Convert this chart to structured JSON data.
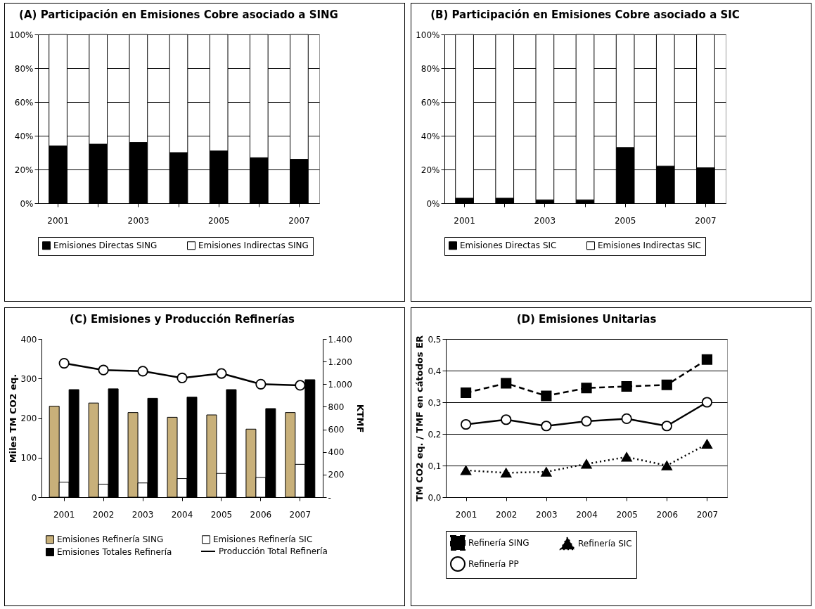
{
  "chart_data": [
    {
      "type": "bar",
      "title": "(A) Participación en Emisiones Cobre asociado a SING",
      "categories": [
        "2001",
        null,
        "2003",
        null,
        "2005",
        null,
        "2007"
      ],
      "stacked": true,
      "ylim": [
        0,
        100
      ],
      "yticks": [
        {
          "value": 0,
          "label": "0%"
        },
        {
          "value": 20,
          "label": "20%"
        },
        {
          "value": 40,
          "label": "40%"
        },
        {
          "value": 60,
          "label": "60%"
        },
        {
          "value": 80,
          "label": "80%"
        },
        {
          "value": 100,
          "label": "100%"
        }
      ],
      "grid": "y",
      "legend": "bottom",
      "series": [
        {
          "name": "Emisiones Directas SING",
          "color": "#000000",
          "values": [
            34,
            35,
            36,
            30,
            31,
            27,
            26
          ]
        },
        {
          "name": "Emisiones Indirectas SING",
          "color": "#ffffff",
          "values": [
            66,
            65,
            64,
            70,
            69,
            73,
            74
          ]
        }
      ]
    },
    {
      "type": "bar",
      "title": "(B) Participación en Emisiones Cobre asociado a SIC",
      "categories": [
        "2001",
        null,
        "2003",
        null,
        "2005",
        null,
        "2007"
      ],
      "stacked": true,
      "ylim": [
        0,
        100
      ],
      "yticks": [
        {
          "value": 0,
          "label": "0%"
        },
        {
          "value": 20,
          "label": "20%"
        },
        {
          "value": 40,
          "label": "40%"
        },
        {
          "value": 60,
          "label": "60%"
        },
        {
          "value": 80,
          "label": "80%"
        },
        {
          "value": 100,
          "label": "100%"
        }
      ],
      "grid": "y",
      "legend": "bottom",
      "series": [
        {
          "name": "Emisiones Directas SIC",
          "color": "#000000",
          "values": [
            3,
            3,
            2,
            2,
            33,
            22,
            21
          ]
        },
        {
          "name": "Emisiones Indirectas SIC",
          "color": "#ffffff",
          "values": [
            97,
            97,
            98,
            98,
            67,
            78,
            79
          ]
        }
      ]
    },
    {
      "type": "bar",
      "title": "(C) Emisiones y Producción Refinerías",
      "ylabel": "Miles TM CO2 eq.",
      "y2label": "KTMF",
      "categories": [
        "2001",
        "2002",
        "2003",
        "2004",
        "2005",
        "2006",
        "2007"
      ],
      "ylim": [
        0,
        400
      ],
      "yticks": [
        0,
        100,
        200,
        300,
        400
      ],
      "y2lim": [
        0,
        1400
      ],
      "y2ticks": [
        {
          "value": 0,
          "label": "-"
        },
        {
          "value": 200,
          "label": "200"
        },
        {
          "value": 400,
          "label": "400"
        },
        {
          "value": 600,
          "label": "600"
        },
        {
          "value": 800,
          "label": "800"
        },
        {
          "value": 1000,
          "label": "1.000"
        },
        {
          "value": 1200,
          "label": "1.200"
        },
        {
          "value": 1400,
          "label": "1.400"
        }
      ],
      "legend": "bottom",
      "series": [
        {
          "name": "Emisiones Refinería SING",
          "color": "#c8b07a",
          "values": [
            230,
            238,
            214,
            202,
            208,
            172,
            214
          ]
        },
        {
          "name": "Emisiones Refinería SIC",
          "color": "#ffffff",
          "values": [
            38,
            33,
            36,
            47,
            60,
            50,
            83
          ]
        },
        {
          "name": "Emisiones Totales Refinería",
          "color": "#000000",
          "values": [
            272,
            274,
            250,
            253,
            272,
            224,
            297
          ]
        },
        {
          "name": "Producción Total Refinería",
          "type": "line",
          "axis": "y2",
          "marker": "circle",
          "line_style": "solid",
          "color": "#000000",
          "values": [
            1185,
            1125,
            1115,
            1055,
            1095,
            1000,
            990
          ]
        }
      ]
    },
    {
      "type": "line",
      "title": "(D) Emisiones Unitarias",
      "ylabel": "TM CO2 eq. / TMF en cátodos ER",
      "categories": [
        "2001",
        "2002",
        "2003",
        "2004",
        "2005",
        "2006",
        "2007"
      ],
      "ylim": [
        0,
        0.5
      ],
      "yticks": [
        {
          "value": 0,
          "label": "0,0"
        },
        {
          "value": 0.1,
          "label": "0,1"
        },
        {
          "value": 0.2,
          "label": "0,2"
        },
        {
          "value": 0.3,
          "label": "0,3"
        },
        {
          "value": 0.4,
          "label": "0,4"
        },
        {
          "value": 0.5,
          "label": "0,5"
        }
      ],
      "grid": "y",
      "legend": "bottom",
      "series": [
        {
          "name": "Refinería SING",
          "color": "#000000",
          "marker": "square",
          "line_style": "dashed",
          "values": [
            0.33,
            0.36,
            0.32,
            0.345,
            0.35,
            0.355,
            0.435
          ]
        },
        {
          "name": "Refinería SIC",
          "color": "#000000",
          "marker": "triangle",
          "line_style": "dotted",
          "values": [
            0.085,
            0.077,
            0.08,
            0.105,
            0.127,
            0.1,
            0.168
          ]
        },
        {
          "name": "Refinería PP",
          "color": "#000000",
          "marker": "circle",
          "line_style": "solid",
          "values": [
            0.23,
            0.245,
            0.225,
            0.24,
            0.248,
            0.225,
            0.3
          ]
        }
      ]
    }
  ]
}
